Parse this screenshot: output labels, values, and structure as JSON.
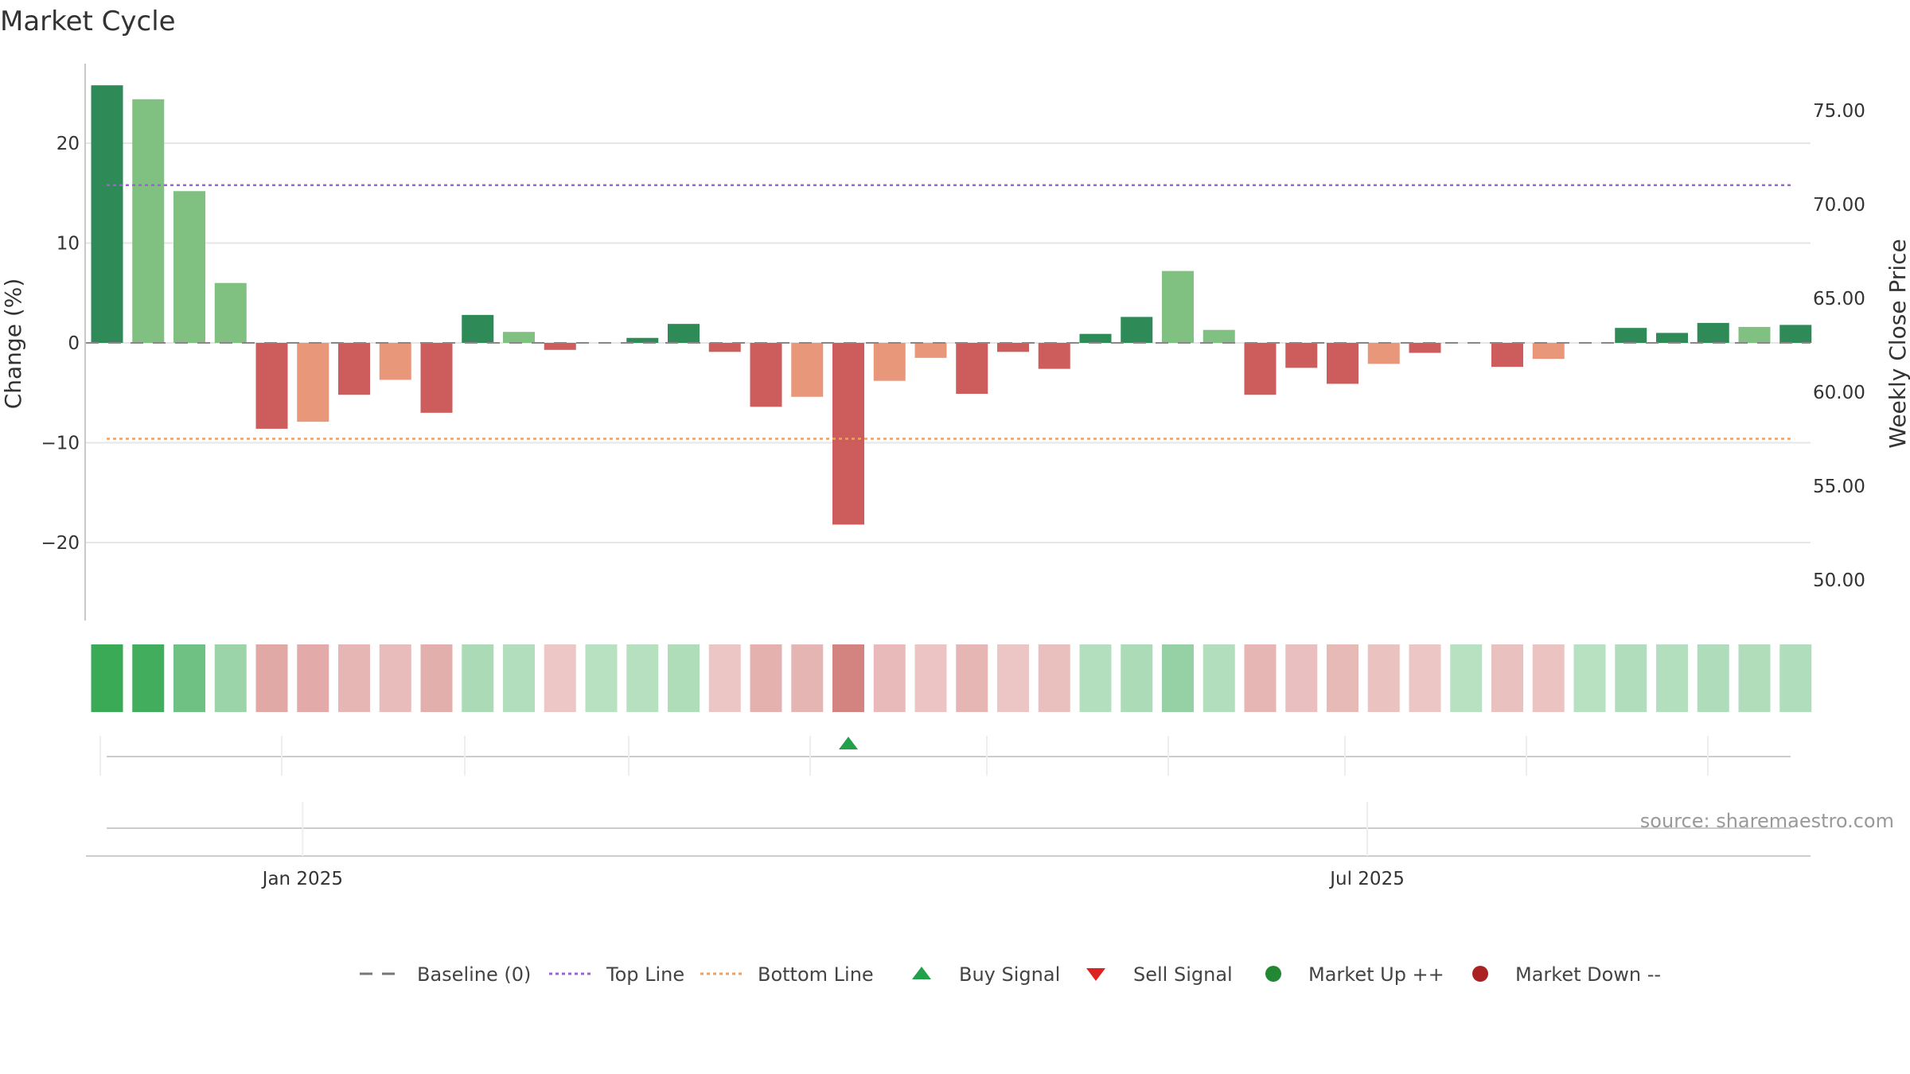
{
  "chart_data": {
    "type": "bar",
    "title": "Market Cycle",
    "ylabel_left": "Change (%)",
    "ylabel_right": "Weekly Close Price",
    "source": "source: sharemaestro.com",
    "ylim_left": [
      -28,
      28
    ],
    "ylim_right": [
      47.5,
      77.5
    ],
    "left_ticks": [
      20,
      10,
      0,
      -10,
      -20
    ],
    "left_tick_labels": [
      "20",
      "10",
      "0",
      "−10",
      "−20"
    ],
    "right_ticks": [
      75,
      70,
      65,
      60,
      55,
      50
    ],
    "right_tick_labels": [
      "75.00",
      "70.00",
      "65.00",
      "60.00",
      "55.00",
      "50.00"
    ],
    "x_tick_labels": [
      {
        "label": "Jan 2025",
        "index": 4.75
      },
      {
        "label": "Jul 2025",
        "index": 30.6
      }
    ],
    "top_line": 15.8,
    "bottom_line": -9.6,
    "baseline": 0,
    "values": [
      25.8,
      24.4,
      15.2,
      6.0,
      -8.6,
      -7.9,
      -5.2,
      -3.7,
      -7.0,
      2.8,
      1.1,
      -0.7,
      0.0,
      0.5,
      1.9,
      -0.9,
      -6.4,
      -5.4,
      -18.2,
      -3.8,
      -1.5,
      -5.1,
      -0.9,
      -2.6,
      0.9,
      2.6,
      7.2,
      1.3,
      -5.2,
      -2.5,
      -4.1,
      -2.1,
      -1.0,
      0.0,
      -2.4,
      -1.6,
      0.0,
      1.5,
      1.0,
      2.0,
      1.6,
      1.8
    ],
    "buy_signals": [
      18
    ],
    "sell_signals": [],
    "legend": [
      {
        "label": "Baseline (0)",
        "marker": "dash",
        "color": "#777777"
      },
      {
        "label": "Top Line",
        "marker": "dotted",
        "color": "#9966cc"
      },
      {
        "label": "Bottom Line",
        "marker": "dotted",
        "color": "#f0a060"
      },
      {
        "label": "Buy Signal",
        "marker": "triangle-up",
        "color": "#22a04a"
      },
      {
        "label": "Sell Signal",
        "marker": "triangle-down",
        "color": "#dd2222"
      },
      {
        "label": "Market Up ++",
        "marker": "circle",
        "color": "#228833"
      },
      {
        "label": "Market Down --",
        "marker": "circle",
        "color": "#aa2222"
      }
    ]
  }
}
